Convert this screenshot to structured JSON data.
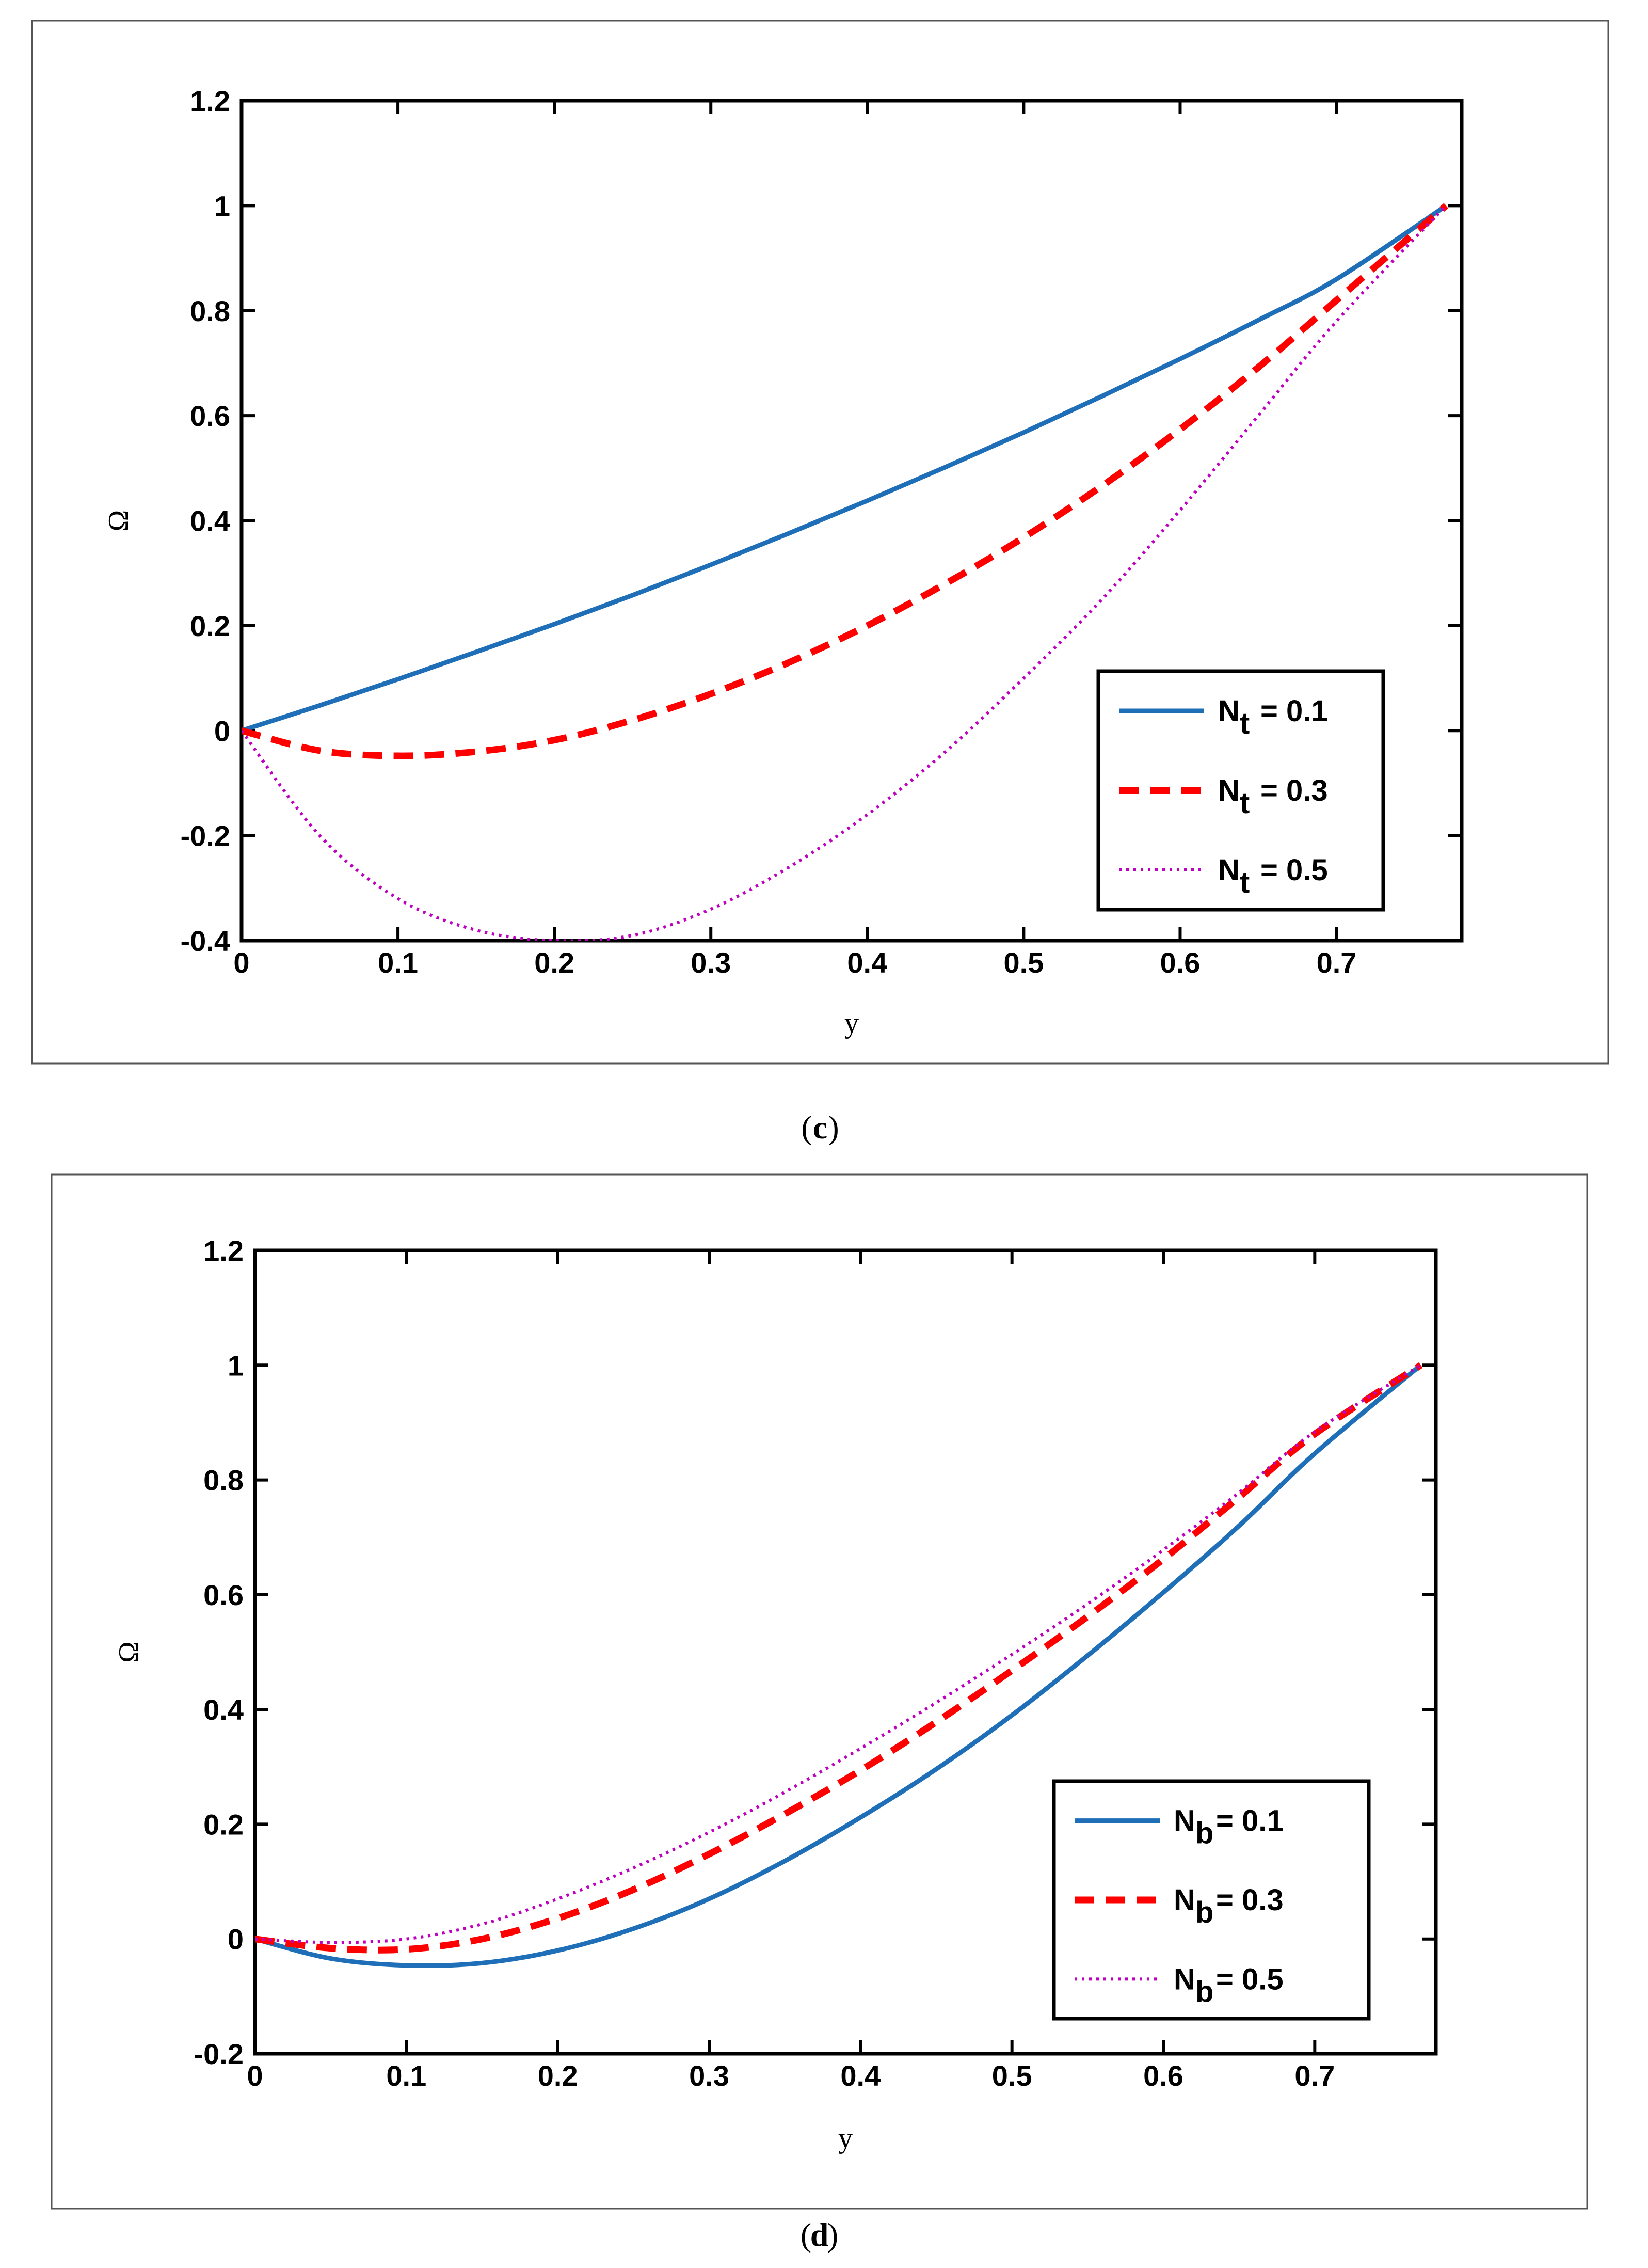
{
  "chart_data": [
    {
      "panel": "c",
      "type": "line",
      "caption_open": "(",
      "caption_letter": "c",
      "caption_close": ")",
      "xlabel": "y",
      "ylabel": "Ω",
      "xlim": [
        0,
        0.78
      ],
      "ylim": [
        -0.4,
        1.2
      ],
      "xticks": [
        "0",
        "0.1",
        "0.2",
        "0.3",
        "0.4",
        "0.5",
        "0.6",
        "0.7"
      ],
      "yticks": [
        "-0.4",
        "-0.2",
        "0",
        "0.2",
        "0.4",
        "0.6",
        "0.8",
        "1",
        "1.2"
      ],
      "x": [
        0,
        0.05,
        0.1,
        0.15,
        0.2,
        0.25,
        0.3,
        0.35,
        0.4,
        0.45,
        0.5,
        0.55,
        0.6,
        0.65,
        0.7,
        0.77
      ],
      "legend_position": "bottom-right",
      "series": [
        {
          "name": "N_t = 0.1",
          "legend_base": "N",
          "legend_sub": "t",
          "legend_value": "= 0.1",
          "color": "#1f6fb8",
          "style": "solid",
          "values": [
            0,
            0.048,
            0.098,
            0.15,
            0.203,
            0.258,
            0.316,
            0.376,
            0.438,
            0.502,
            0.568,
            0.637,
            0.708,
            0.782,
            0.86,
            1.0
          ]
        },
        {
          "name": "N_t = 0.3",
          "legend_base": "N",
          "legend_sub": "t",
          "legend_value": "= 0.3",
          "color": "#ff0000",
          "style": "dashed",
          "values": [
            0,
            -0.038,
            -0.048,
            -0.04,
            -0.018,
            0.02,
            0.07,
            0.13,
            0.2,
            0.28,
            0.368,
            0.466,
            0.574,
            0.692,
            0.82,
            1.0
          ]
        },
        {
          "name": "N_t = 0.5",
          "legend_base": "N",
          "legend_sub": "t",
          "legend_value": "= 0.5",
          "color": "#c000c0",
          "style": "dotted",
          "values": [
            0,
            -0.2,
            -0.32,
            -0.38,
            -0.4,
            -0.39,
            -0.34,
            -0.26,
            -0.16,
            -0.04,
            0.1,
            0.25,
            0.42,
            0.6,
            0.78,
            1.0
          ]
        }
      ]
    },
    {
      "panel": "d",
      "type": "line",
      "caption_open": "(",
      "caption_letter": "d",
      "caption_close": ")",
      "xlabel": "y",
      "ylabel": "Ω",
      "xlim": [
        0,
        0.78
      ],
      "ylim": [
        -0.2,
        1.2
      ],
      "xticks": [
        "0",
        "0.1",
        "0.2",
        "0.3",
        "0.4",
        "0.5",
        "0.6",
        "0.7"
      ],
      "yticks": [
        "-0.2",
        "0",
        "0.2",
        "0.4",
        "0.6",
        "0.8",
        "1",
        "1.2"
      ],
      "x": [
        0,
        0.05,
        0.1,
        0.15,
        0.2,
        0.25,
        0.3,
        0.35,
        0.4,
        0.45,
        0.5,
        0.55,
        0.6,
        0.65,
        0.7,
        0.77
      ],
      "legend_position": "bottom-right",
      "series": [
        {
          "name": "N_b = 0.1",
          "legend_base": "N",
          "legend_sub": "b",
          "legend_value": "= 0.1",
          "color": "#1f6fb8",
          "style": "solid",
          "values": [
            0,
            -0.034,
            -0.046,
            -0.042,
            -0.02,
            0.018,
            0.07,
            0.136,
            0.212,
            0.296,
            0.39,
            0.494,
            0.604,
            0.72,
            0.846,
            1.0
          ]
        },
        {
          "name": "N_b = 0.3",
          "legend_base": "N",
          "legend_sub": "b",
          "legend_value": "= 0.3",
          "color": "#ff0000",
          "style": "dashed",
          "values": [
            0,
            -0.016,
            -0.018,
            0.0,
            0.036,
            0.086,
            0.148,
            0.218,
            0.294,
            0.378,
            0.468,
            0.562,
            0.662,
            0.77,
            0.88,
            1.0
          ]
        },
        {
          "name": "N_b = 0.5",
          "legend_base": "N",
          "legend_sub": "b",
          "legend_value": "= 0.5",
          "color": "#c000c0",
          "style": "dotted",
          "values": [
            0,
            -0.006,
            0.0,
            0.026,
            0.07,
            0.124,
            0.186,
            0.256,
            0.332,
            0.412,
            0.496,
            0.584,
            0.678,
            0.778,
            0.884,
            1.0
          ]
        }
      ]
    }
  ]
}
